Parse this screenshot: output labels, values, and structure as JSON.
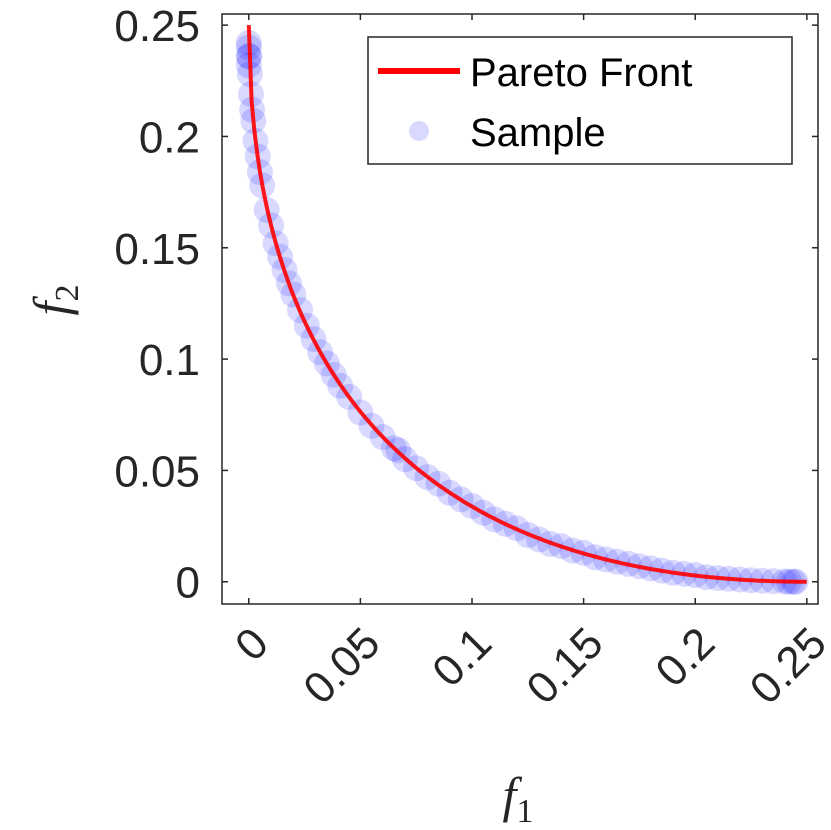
{
  "chart_data": {
    "type": "scatter",
    "xlabel": "f",
    "xlabel_sub": "1",
    "ylabel": "f",
    "ylabel_sub": "2",
    "xlim": [
      -0.012,
      0.255
    ],
    "ylim": [
      -0.01,
      0.255
    ],
    "xticks": [
      0,
      0.05,
      0.1,
      0.15,
      0.2,
      0.25
    ],
    "xtick_labels": [
      "0",
      "0.05",
      "0.1",
      "0.15",
      "0.2",
      "0.25"
    ],
    "yticks": [
      0,
      0.05,
      0.1,
      0.15,
      0.2,
      0.25
    ],
    "ytick_labels": [
      "0",
      "0.05",
      "0.1",
      "0.15",
      "0.2",
      "0.25"
    ],
    "xtick_rotation_deg": -45,
    "grid": false,
    "legend_position": "top-right",
    "series": [
      {
        "name": "Pareto Front",
        "kind": "line",
        "color": "#ff0000",
        "formula": "f2 = (0.5 - sqrt(f1))^2",
        "x": [
          0,
          0.0005,
          0.001,
          0.002,
          0.004,
          0.007,
          0.01,
          0.015,
          0.02,
          0.03,
          0.04,
          0.05,
          0.06,
          0.07,
          0.08,
          0.09,
          0.1,
          0.11,
          0.12,
          0.13,
          0.14,
          0.15,
          0.16,
          0.17,
          0.18,
          0.19,
          0.2,
          0.21,
          0.22,
          0.23,
          0.24,
          0.25
        ],
        "y": [
          0.25,
          0.2281,
          0.2194,
          0.2073,
          0.1907,
          0.1733,
          0.16,
          0.1425,
          0.1286,
          0.1068,
          0.09,
          0.0764,
          0.0651,
          0.0555,
          0.0472,
          0.04,
          0.0338,
          0.0283,
          0.0236,
          0.0195,
          0.0158,
          0.0127,
          0.01,
          0.0077,
          0.0057,
          0.0041,
          0.0028,
          0.0017,
          0.0009,
          0.0004,
          0.0001,
          0
        ]
      },
      {
        "name": "Sample",
        "kind": "scatter",
        "color": "#0000ff",
        "opacity": 0.15,
        "x": [
          0,
          0,
          0,
          0,
          0.0002,
          0.0005,
          0.001,
          0.0015,
          0.002,
          0.003,
          0.004,
          0.005,
          0.006,
          0.008,
          0.01,
          0.012,
          0.014,
          0.016,
          0.018,
          0.02,
          0.023,
          0.026,
          0.029,
          0.032,
          0.035,
          0.038,
          0.041,
          0.045,
          0.05,
          0.055,
          0.06,
          0.065,
          0.067,
          0.07,
          0.075,
          0.08,
          0.085,
          0.09,
          0.095,
          0.1,
          0.105,
          0.11,
          0.115,
          0.12,
          0.125,
          0.13,
          0.135,
          0.14,
          0.145,
          0.15,
          0.155,
          0.16,
          0.165,
          0.17,
          0.175,
          0.18,
          0.185,
          0.19,
          0.195,
          0.2,
          0.205,
          0.21,
          0.215,
          0.22,
          0.225,
          0.23,
          0.235,
          0.24,
          0.242,
          0.244,
          0.245
        ],
        "y": [
          0.242,
          0.24,
          0.236,
          0.232,
          0.236,
          0.228,
          0.219,
          0.212,
          0.207,
          0.198,
          0.191,
          0.184,
          0.178,
          0.167,
          0.16,
          0.152,
          0.146,
          0.14,
          0.134,
          0.129,
          0.122,
          0.115,
          0.109,
          0.103,
          0.098,
          0.093,
          0.088,
          0.083,
          0.076,
          0.07,
          0.065,
          0.06,
          0.059,
          0.055,
          0.051,
          0.047,
          0.044,
          0.04,
          0.037,
          0.034,
          0.031,
          0.028,
          0.026,
          0.024,
          0.021,
          0.019,
          0.017,
          0.016,
          0.014,
          0.013,
          0.011,
          0.01,
          0.009,
          0.008,
          0.007,
          0.006,
          0.005,
          0.004,
          0.0035,
          0.003,
          0.002,
          0.0017,
          0.0013,
          0.001,
          0.0007,
          0.0004,
          0.0003,
          0.0001,
          0,
          0,
          0
        ]
      }
    ]
  }
}
